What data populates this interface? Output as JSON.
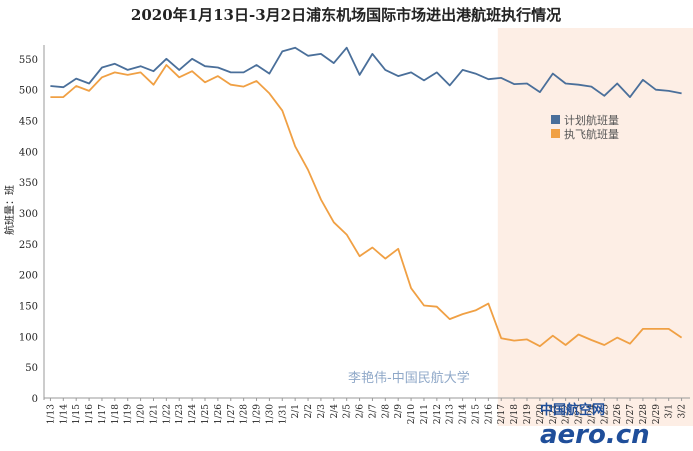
{
  "chart_data": {
    "type": "line",
    "title": "2020年1月13日-3月2日浦东机场国际市场进出港航班执行情况",
    "ylabel": "航班量：班",
    "xlabel": "",
    "ylim": [
      0,
      600
    ],
    "yticks": [
      0,
      50,
      100,
      150,
      200,
      250,
      300,
      350,
      400,
      450,
      500,
      550
    ],
    "legend_position": "right",
    "grid": false,
    "x": [
      "1/13",
      "1/14",
      "1/15",
      "1/16",
      "1/17",
      "1/18",
      "1/19",
      "1/20",
      "1/21",
      "1/22",
      "1/23",
      "1/24",
      "1/25",
      "1/26",
      "1/27",
      "1/28",
      "1/29",
      "1/30",
      "1/31",
      "2/1",
      "2/2",
      "2/3",
      "2/4",
      "2/5",
      "2/6",
      "2/7",
      "2/8",
      "2/9",
      "2/10",
      "2/11",
      "2/12",
      "2/13",
      "2/14",
      "2/15",
      "2/16",
      "2/17",
      "2/18",
      "2/19",
      "2/20",
      "2/21",
      "2/22",
      "2/23",
      "2/24",
      "2/25",
      "2/26",
      "2/27",
      "2/28",
      "2/29",
      "3/1",
      "3/2"
    ],
    "forecast_from": "2/17",
    "series": [
      {
        "name": "计划航班量",
        "color": "#4a6f9a",
        "values": [
          506,
          504,
          518,
          510,
          536,
          542,
          532,
          538,
          530,
          550,
          532,
          550,
          538,
          536,
          528,
          528,
          540,
          526,
          562,
          568,
          555,
          558,
          543,
          568,
          524,
          558,
          532,
          522,
          528,
          515,
          528,
          507,
          532,
          526,
          517,
          519,
          509,
          510,
          496,
          526,
          510,
          508,
          505,
          490,
          510,
          488,
          516,
          500,
          498,
          494
        ]
      },
      {
        "name": "执飞航班量",
        "color": "#f0a044",
        "values": [
          488,
          488,
          506,
          498,
          520,
          528,
          524,
          528,
          508,
          540,
          520,
          530,
          512,
          522,
          508,
          505,
          514,
          494,
          466,
          408,
          370,
          322,
          285,
          265,
          230,
          244,
          226,
          242,
          178,
          150,
          148,
          128,
          136,
          142,
          153,
          97,
          93,
          95,
          84,
          101,
          86,
          103,
          94,
          86,
          98,
          88,
          112,
          112,
          112,
          98
        ]
      }
    ],
    "watermark": "李艳伟-中国民航大学",
    "logo": {
      "cn": "中国航空网",
      "en": "aero.cn"
    }
  }
}
